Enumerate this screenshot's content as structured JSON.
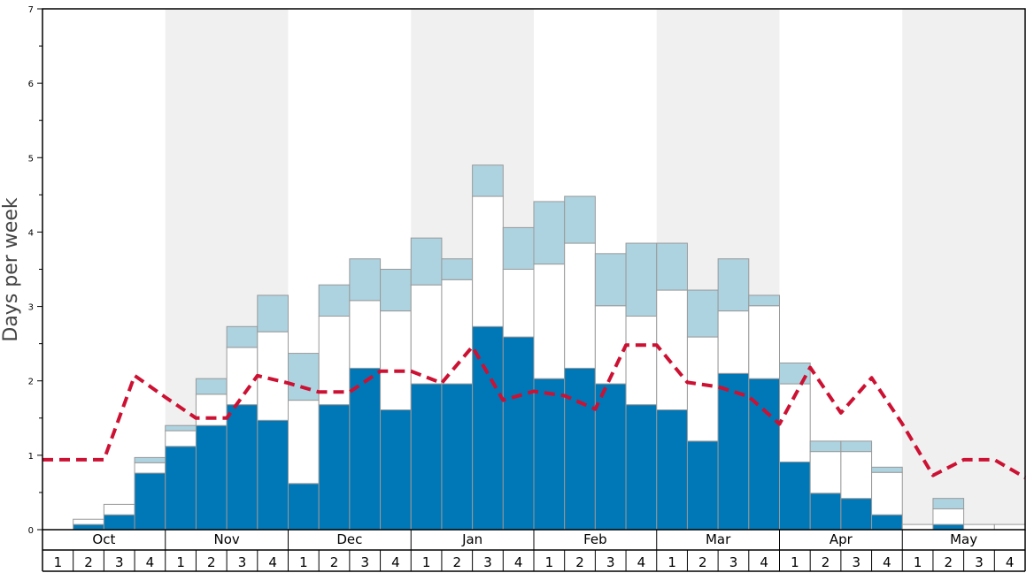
{
  "chart_data": {
    "type": "bar",
    "ylabel": "Days per week",
    "ylim": [
      0,
      7
    ],
    "yticks": [
      0,
      1,
      2,
      3,
      4,
      5,
      6,
      7
    ],
    "months": [
      "Oct",
      "Nov",
      "Dec",
      "Jan",
      "Feb",
      "Mar",
      "Apr",
      "May"
    ],
    "weeks": [
      "1",
      "2",
      "3",
      "4"
    ],
    "colors": {
      "dark": "#0077b6",
      "white": "#ffffff",
      "light": "#add3e0",
      "line": "#cc1133",
      "band": "#f0f0f0"
    },
    "series": [
      {
        "values": [
          0,
          0.07,
          0.2,
          0.76,
          1.12,
          1.4,
          1.68,
          1.47,
          0.62,
          1.68,
          2.17,
          1.61,
          1.96,
          1.96,
          2.73,
          2.59,
          2.03,
          2.17,
          1.96,
          1.68,
          1.61,
          1.19,
          2.1,
          2.03,
          0.91,
          0.49,
          0.42,
          0.2,
          0,
          0.07,
          0,
          0
        ]
      },
      {
        "values": [
          0,
          0.07,
          0.14,
          0.14,
          0.21,
          0.42,
          0.77,
          1.19,
          1.12,
          1.19,
          0.91,
          1.33,
          1.33,
          1.4,
          1.75,
          0.91,
          1.54,
          1.68,
          1.05,
          1.19,
          1.61,
          1.4,
          0.84,
          0.98,
          1.05,
          0.56,
          0.63,
          0.57,
          0.07,
          0.21,
          0.07,
          0.07
        ]
      },
      {
        "values": [
          0,
          0,
          0,
          0.07,
          0.07,
          0.21,
          0.28,
          0.49,
          0.63,
          0.42,
          0.56,
          0.56,
          0.63,
          0.28,
          0.42,
          0.56,
          0.84,
          0.63,
          0.7,
          0.98,
          0.63,
          0.63,
          0.7,
          0.14,
          0.28,
          0.14,
          0.14,
          0.07,
          0,
          0.14,
          0,
          0
        ]
      }
    ],
    "line": {
      "values": [
        0.94,
        0.94,
        0.94,
        2.07,
        1.78,
        1.5,
        1.5,
        2.07,
        1.97,
        1.85,
        1.85,
        2.13,
        2.13,
        1.97,
        2.46,
        1.74,
        1.86,
        1.8,
        1.62,
        2.48,
        2.48,
        1.98,
        1.92,
        1.79,
        1.42,
        2.18,
        1.57,
        2.04,
        1.42,
        0.73,
        0.94,
        0.94,
        0.7
      ]
    }
  }
}
